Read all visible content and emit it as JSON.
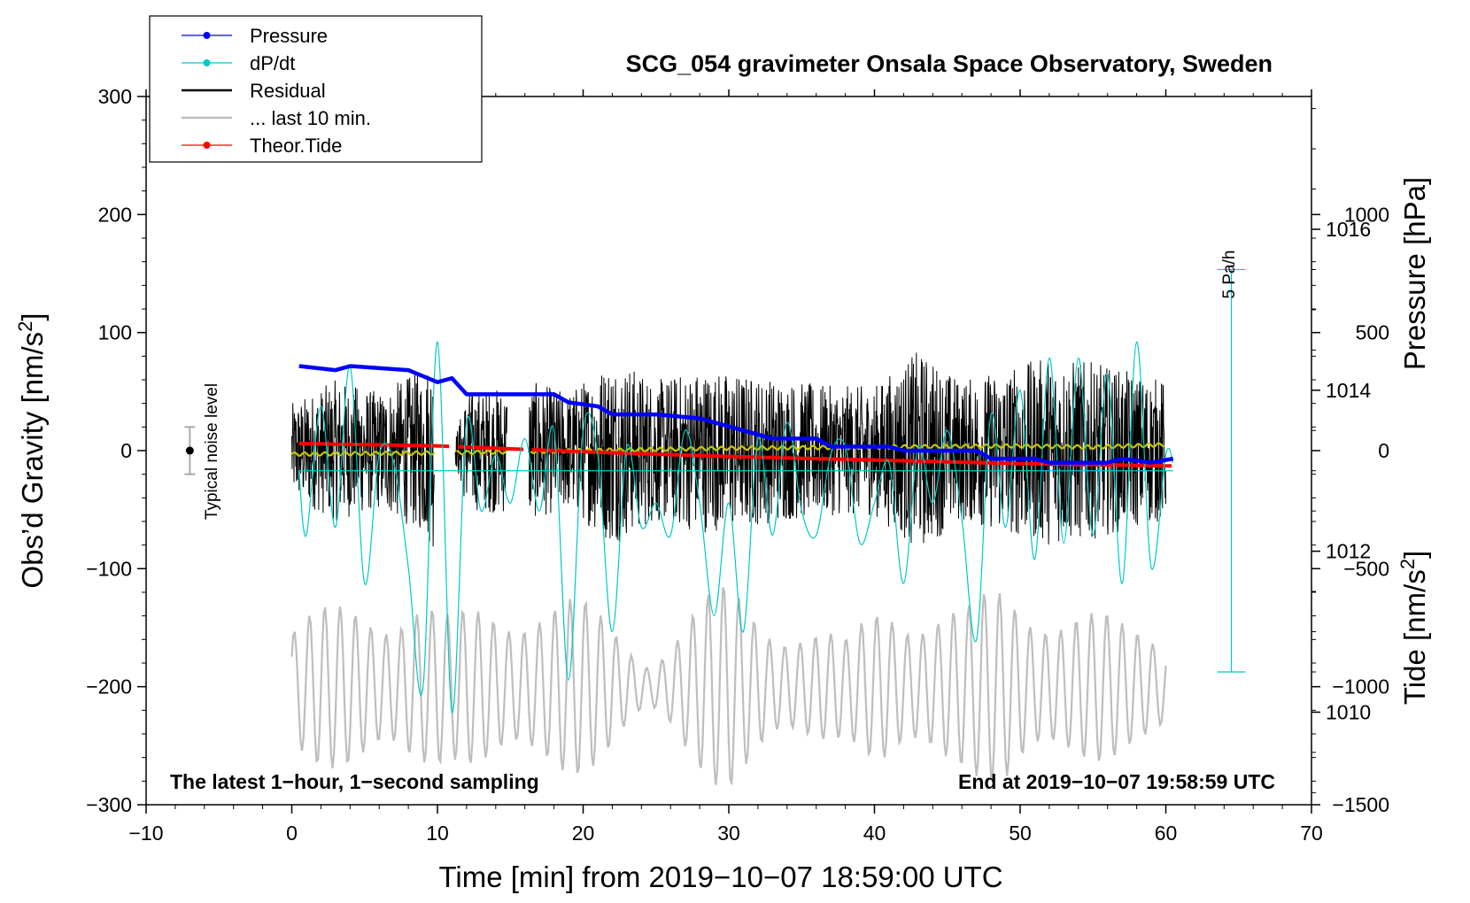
{
  "chart_data": {
    "type": "line",
    "title": "SCG_054 gravimeter Onsala Space Observatory, Sweden",
    "xlabel": "Time [min] from 2019−10−07 18:59:00 UTC",
    "ylabel_left_main": "Obs’d Gravity [nm/s",
    "ylabel_left_sup": "2",
    "ylabel_left_close": "]",
    "ylabel_right_pressure": "Pressure [hPa]",
    "ylabel_right_tide_main": "Tide [nm/s",
    "ylabel_right_tide_sup": "2",
    "ylabel_right_tide_close": "]",
    "xlim": [
      -10,
      70
    ],
    "ylim_gravity": [
      -300,
      300
    ],
    "ylim_pressure": [
      1008.85,
      1017.65
    ],
    "ylim_tide": [
      -1500,
      1500
    ],
    "x_ticks": [
      {
        "v": -10,
        "label": "−10"
      },
      {
        "v": 0,
        "label": "0"
      },
      {
        "v": 10,
        "label": "10"
      },
      {
        "v": 20,
        "label": "20"
      },
      {
        "v": 30,
        "label": "30"
      },
      {
        "v": 40,
        "label": "40"
      },
      {
        "v": 50,
        "label": "50"
      },
      {
        "v": 60,
        "label": "60"
      },
      {
        "v": 70,
        "label": "70"
      }
    ],
    "gravity_ticks": [
      {
        "v": 300,
        "label": "300"
      },
      {
        "v": 200,
        "label": "200"
      },
      {
        "v": 100,
        "label": "100"
      },
      {
        "v": 0,
        "label": "0"
      },
      {
        "v": -100,
        "label": "−100"
      },
      {
        "v": -200,
        "label": "−200"
      },
      {
        "v": -300,
        "label": "−300"
      }
    ],
    "pressure_ticks": [
      {
        "v": 1016,
        "label": "1016"
      },
      {
        "v": 1014,
        "label": "1014"
      },
      {
        "v": 1012,
        "label": "1012"
      },
      {
        "v": 1010,
        "label": "1010"
      }
    ],
    "tide_ticks": [
      {
        "v": 1000,
        "label": "1000"
      },
      {
        "v": 500,
        "label": "500"
      },
      {
        "v": 0,
        "label": "0"
      },
      {
        "v": -500,
        "label": "−500"
      },
      {
        "v": -1000,
        "label": "−1000"
      },
      {
        "v": -1500,
        "label": "−1500"
      }
    ],
    "legend": [
      {
        "label": "Pressure",
        "color": "#0000ff",
        "marker": true
      },
      {
        "label": "dP/dt",
        "color": "#00c8c8",
        "marker": true
      },
      {
        "label": "Residual",
        "color": "#000000",
        "marker": false
      },
      {
        "label": "... last 10 min.",
        "color": "#bebebe",
        "marker": false
      },
      {
        "label": "Theor.Tide",
        "color": "#ff0000",
        "marker": true
      }
    ],
    "noise_label": "Typical noise level",
    "noise_level": {
      "x": -7,
      "center": 0,
      "halfwidth": 20
    },
    "dpdt_scale": {
      "label": "5 Pa/h",
      "x": 64.5,
      "center_hpa": 1013,
      "half_hpa": 2.5
    },
    "footer_left": "The latest 1−hour, 1−second sampling",
    "footer_right": "End at 2019−10−07 19:58:59 UTC",
    "pressure_series": {
      "name": "Pressure",
      "color": "#0000ff",
      "x": [
        0.5,
        3,
        4,
        8,
        10,
        11,
        12,
        18,
        19,
        21,
        22,
        25,
        28,
        32,
        33,
        36,
        37,
        41,
        42,
        47,
        48,
        51,
        52,
        56,
        57,
        59,
        60.5
      ],
      "y": [
        1014.3,
        1014.25,
        1014.3,
        1014.25,
        1014.1,
        1014.15,
        1013.95,
        1013.95,
        1013.85,
        1013.8,
        1013.7,
        1013.7,
        1013.65,
        1013.45,
        1013.4,
        1013.4,
        1013.3,
        1013.3,
        1013.25,
        1013.25,
        1013.15,
        1013.15,
        1013.1,
        1013.1,
        1013.15,
        1013.1,
        1013.15
      ]
    },
    "dpdt_series": {
      "name": "dP/dt",
      "color": "#00c8c8",
      "zero_line_hpa": 1013,
      "x": [
        0.5,
        1,
        2,
        3,
        4,
        5,
        6,
        7,
        8,
        9,
        10,
        11,
        12,
        13,
        14,
        15,
        16,
        17,
        18,
        19,
        20,
        21,
        22,
        23,
        24,
        25,
        26,
        27,
        28,
        29,
        30,
        31,
        32,
        33,
        34,
        35,
        36,
        37,
        38,
        39,
        40,
        41,
        42,
        43,
        44,
        45,
        46,
        47,
        48,
        49,
        50,
        51,
        52,
        53,
        54,
        55,
        56,
        57,
        58,
        59,
        60,
        60.5
      ],
      "y": [
        1013,
        1012.2,
        1013.8,
        1012.3,
        1014.3,
        1011.6,
        1013.2,
        1013.1,
        1011.8,
        1010.3,
        1014.6,
        1010,
        1013.6,
        1012.5,
        1013.2,
        1012.6,
        1013.4,
        1012.5,
        1013.5,
        1010.4,
        1013.5,
        1013.2,
        1011,
        1013.3,
        1012.3,
        1012.6,
        1012.2,
        1013.5,
        1012.6,
        1011.2,
        1012.6,
        1011,
        1013.4,
        1012.2,
        1013.6,
        1012.5,
        1012.2,
        1013.2,
        1013.3,
        1012.1,
        1012.6,
        1013.1,
        1011.6,
        1013.3,
        1012.6,
        1013.5,
        1012.4,
        1010.9,
        1013.7,
        1012.3,
        1014,
        1011.9,
        1014.4,
        1012.1,
        1014.4,
        1012.2,
        1014.2,
        1011.6,
        1014.6,
        1011.8,
        1013.2,
        1013.1
      ]
    },
    "residual_series": {
      "name": "Residual",
      "color": "#000000",
      "description_x": [
        0,
        3,
        6,
        9,
        10,
        11,
        12,
        15,
        16,
        19,
        22,
        25,
        28,
        31,
        34,
        37,
        40,
        43,
        46,
        49,
        52,
        55,
        58,
        60
      ],
      "envelope_nm_s2": [
        40,
        60,
        50,
        70,
        90,
        0,
        50,
        55,
        60,
        50,
        80,
        60,
        70,
        65,
        60,
        55,
        55,
        85,
        60,
        70,
        80,
        75,
        65,
        60
      ],
      "gaps": [
        [
          9.8,
          11.2
        ],
        [
          14.8,
          16.3
        ]
      ]
    },
    "mean_series": {
      "name": "",
      "color": "#c8c800",
      "x": [
        0,
        10,
        20,
        30,
        40,
        50,
        55,
        60
      ],
      "y": [
        -3,
        -2,
        0,
        2,
        3,
        4,
        3,
        5
      ]
    },
    "last10_series": {
      "name": "... last 10 min.",
      "color": "#bebebe",
      "x_start": 0,
      "x_end": 60,
      "center_nm_s2": -200,
      "envelope_nm_s2": [
        60,
        70,
        85,
        95,
        60,
        80,
        95,
        80,
        60,
        30,
        70,
        90,
        75,
        60,
        40,
        90,
        85,
        70,
        95,
        90,
        70,
        55,
        60
      ]
    },
    "tide_series": {
      "name": "Theor.Tide",
      "color": "#ff0000",
      "x": [
        0.5,
        10,
        20,
        30,
        40,
        50,
        60.5
      ],
      "y": [
        30,
        20,
        -5,
        -25,
        -40,
        -55,
        -65
      ],
      "gaps": [
        [
          10.8,
          11.3
        ],
        [
          15.9,
          16.4
        ]
      ]
    }
  }
}
